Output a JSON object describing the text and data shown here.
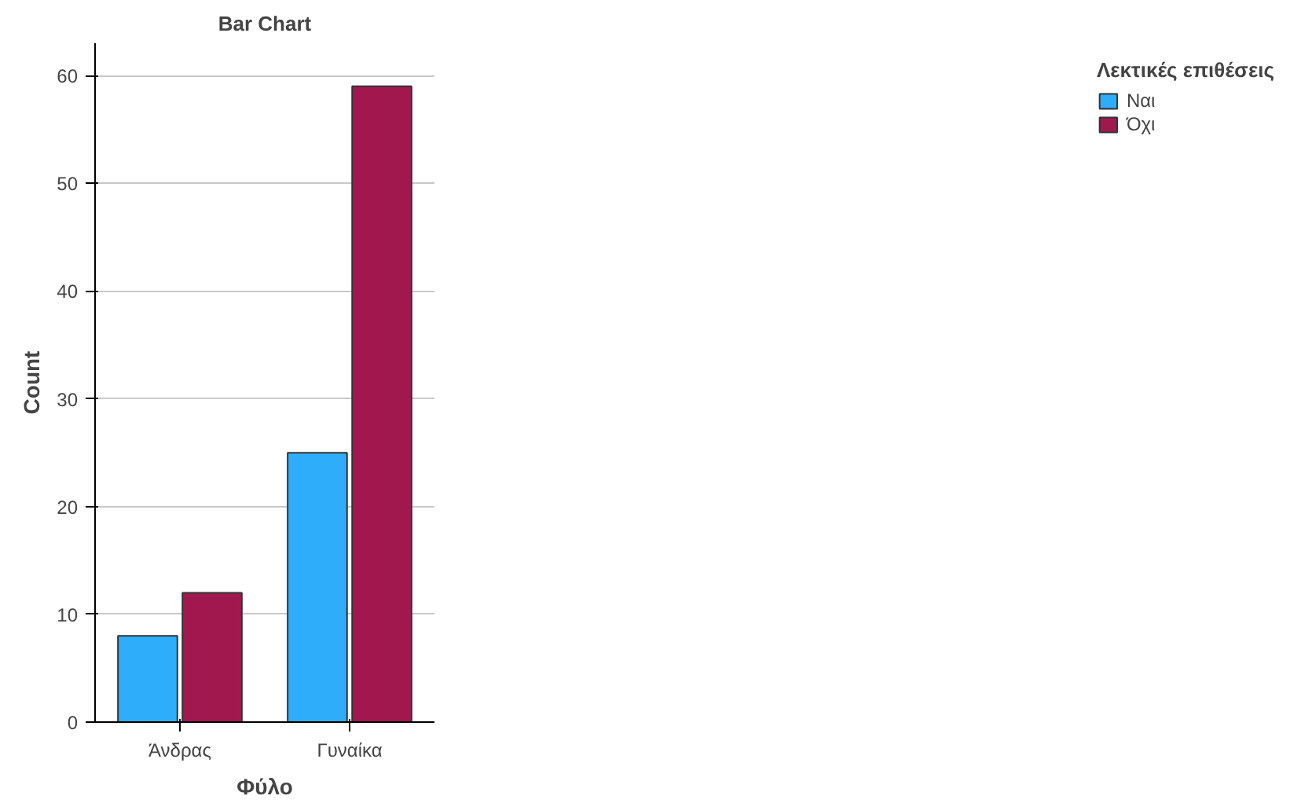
{
  "chart_data": {
    "type": "bar",
    "title": "Bar Chart",
    "xlabel": "Φύλο",
    "ylabel": "Count",
    "legend_title": "Λεκτικές επιθέσεις",
    "categories": [
      "Άνδρας",
      "Γυναίκα"
    ],
    "series": [
      {
        "name": "Ναι",
        "color": "#2eaefa",
        "values": [
          8,
          25
        ]
      },
      {
        "name": "Όχι",
        "color": "#a1184f",
        "values": [
          12,
          59
        ]
      }
    ],
    "ylim": [
      0,
      63
    ],
    "yticks": [
      0,
      10,
      20,
      30,
      40,
      50,
      60
    ],
    "grid": "y",
    "legend": "top right"
  }
}
